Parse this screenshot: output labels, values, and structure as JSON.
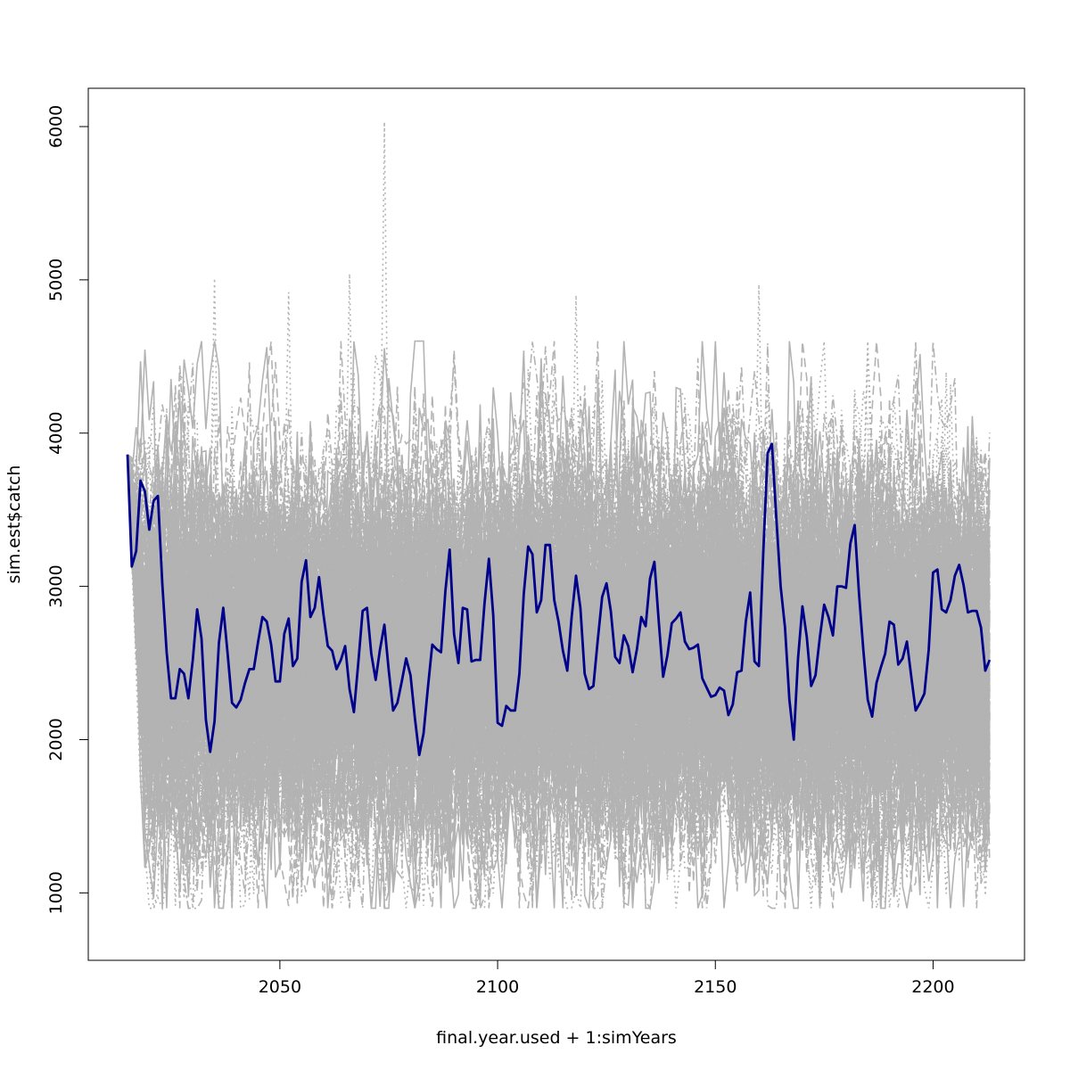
{
  "chart_data": {
    "type": "line",
    "title": "",
    "xlabel": "final.year.used + 1:simYears",
    "ylabel": "sim.est$catch",
    "xlim": [
      2006,
      2221
    ],
    "ylim": [
      560,
      6250
    ],
    "x_ticks": [
      2050,
      2100,
      2150,
      2200
    ],
    "y_ticks": [
      1000,
      2000,
      3000,
      4000,
      5000,
      6000
    ],
    "grid": false,
    "legend": "none",
    "x_start": 2015,
    "x_end": 2213,
    "background_color": "#B3B3B3",
    "highlight_color": "#00008B",
    "background_series_note": "many gray simulated trajectories spanning roughly 1000 to 4500 with occasional peaks up to about 6000",
    "highlight_series": {
      "values": [
        3860,
        3130,
        3230,
        3690,
        3620,
        3370,
        3560,
        3590,
        3020,
        2570,
        2270,
        2270,
        2460,
        2430,
        2270,
        2520,
        2850,
        2660,
        2130,
        1920,
        2120,
        2630,
        2860,
        2560,
        2240,
        2210,
        2260,
        2370,
        2460,
        2460,
        2640,
        2800,
        2770,
        2620,
        2380,
        2380,
        2690,
        2790,
        2480,
        2530,
        3030,
        3170,
        2800,
        2860,
        3060,
        2820,
        2610,
        2580,
        2460,
        2520,
        2610,
        2330,
        2180,
        2500,
        2840,
        2860,
        2560,
        2390,
        2590,
        2750,
        2450,
        2190,
        2240,
        2380,
        2530,
        2420,
        2140,
        1900,
        2040,
        2340,
        2620,
        2590,
        2570,
        2970,
        3240,
        2690,
        2500,
        2860,
        2850,
        2510,
        2520,
        2520,
        2890,
        3180,
        2810,
        2110,
        2090,
        2220,
        2190,
        2190,
        2430,
        2950,
        3260,
        3210,
        2830,
        2910,
        3270,
        3270,
        2910,
        2770,
        2580,
        2450,
        2800,
        3070,
        2860,
        2430,
        2330,
        2350,
        2650,
        2930,
        3020,
        2840,
        2540,
        2500,
        2680,
        2610,
        2440,
        2590,
        2800,
        2740,
        3050,
        3160,
        2770,
        2410,
        2550,
        2760,
        2790,
        2830,
        2640,
        2590,
        2600,
        2620,
        2400,
        2340,
        2280,
        2290,
        2340,
        2320,
        2160,
        2230,
        2440,
        2450,
        2770,
        2960,
        2510,
        2480,
        3220,
        3870,
        3930,
        3450,
        3000,
        2730,
        2260,
        2000,
        2530,
        2870,
        2670,
        2350,
        2420,
        2670,
        2880,
        2800,
        2680,
        3000,
        3000,
        2990,
        3280,
        3400,
        2950,
        2580,
        2260,
        2150,
        2370,
        2470,
        2560,
        2770,
        2750,
        2490,
        2530,
        2640,
        2410,
        2190,
        2240,
        2300,
        2590,
        3090,
        3110,
        2850,
        2830,
        2910,
        3070,
        3140,
        3010,
        2830,
        2840,
        2840,
        2730,
        2450,
        2520
      ]
    }
  }
}
